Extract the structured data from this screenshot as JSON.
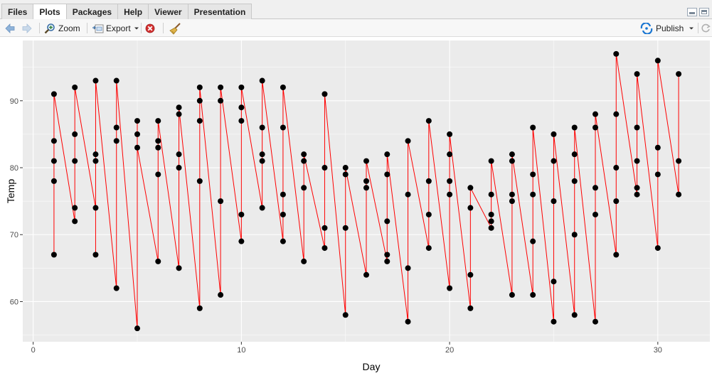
{
  "tabs": [
    {
      "label": "Files"
    },
    {
      "label": "Plots"
    },
    {
      "label": "Packages"
    },
    {
      "label": "Help"
    },
    {
      "label": "Viewer"
    },
    {
      "label": "Presentation"
    }
  ],
  "toolbar": {
    "zoom_label": "Zoom",
    "export_label": "Export",
    "publish_label": "Publish"
  },
  "icons": {
    "back": "arrow-left-icon",
    "forward": "arrow-right-icon",
    "zoom": "magnifier-icon",
    "export": "export-icon",
    "remove": "remove-plot-icon",
    "clear": "broom-icon",
    "publish": "publish-icon",
    "refresh": "refresh-icon"
  },
  "colors": {
    "panel_bg": "#ebebeb",
    "grid": "#ffffff",
    "line": "#ff0000",
    "point": "#000000"
  },
  "chart_data": {
    "type": "line",
    "xlabel": "Day",
    "ylabel": "Temp",
    "xlim": [
      -0.5,
      32.5
    ],
    "ylim": [
      54,
      99
    ],
    "x_ticks": [
      0,
      10,
      20,
      30
    ],
    "y_ticks": [
      60,
      70,
      80,
      90
    ],
    "grid": true,
    "points": [
      [
        1,
        67
      ],
      [
        1,
        78
      ],
      [
        1,
        84
      ],
      [
        1,
        81
      ],
      [
        1,
        91
      ],
      [
        2,
        72
      ],
      [
        2,
        74
      ],
      [
        2,
        85
      ],
      [
        2,
        81
      ],
      [
        2,
        92
      ],
      [
        3,
        74
      ],
      [
        3,
        67
      ],
      [
        3,
        82
      ],
      [
        3,
        81
      ],
      [
        3,
        93
      ],
      [
        4,
        62
      ],
      [
        4,
        86
      ],
      [
        4,
        84
      ],
      [
        4,
        93
      ],
      [
        5,
        56
      ],
      [
        5,
        87
      ],
      [
        5,
        85
      ],
      [
        5,
        83
      ],
      [
        6,
        66
      ],
      [
        6,
        79
      ],
      [
        6,
        84
      ],
      [
        6,
        83
      ],
      [
        6,
        87
      ],
      [
        7,
        65
      ],
      [
        7,
        80
      ],
      [
        7,
        82
      ],
      [
        7,
        88
      ],
      [
        7,
        89
      ],
      [
        8,
        59
      ],
      [
        8,
        78
      ],
      [
        8,
        87
      ],
      [
        8,
        90
      ],
      [
        8,
        92
      ],
      [
        9,
        61
      ],
      [
        9,
        75
      ],
      [
        9,
        90
      ],
      [
        9,
        92
      ],
      [
        10,
        69
      ],
      [
        10,
        73
      ],
      [
        10,
        87
      ],
      [
        10,
        89
      ],
      [
        10,
        92
      ],
      [
        11,
        74
      ],
      [
        11,
        81
      ],
      [
        11,
        82
      ],
      [
        11,
        86
      ],
      [
        11,
        93
      ],
      [
        12,
        69
      ],
      [
        12,
        73
      ],
      [
        12,
        76
      ],
      [
        12,
        86
      ],
      [
        12,
        92
      ],
      [
        13,
        66
      ],
      [
        13,
        77
      ],
      [
        13,
        81
      ],
      [
        13,
        82
      ],
      [
        14,
        68
      ],
      [
        14,
        71
      ],
      [
        14,
        80
      ],
      [
        14,
        91
      ],
      [
        15,
        58
      ],
      [
        15,
        71
      ],
      [
        15,
        79
      ],
      [
        15,
        80
      ],
      [
        16,
        64
      ],
      [
        16,
        77
      ],
      [
        16,
        78
      ],
      [
        16,
        81
      ],
      [
        17,
        66
      ],
      [
        17,
        67
      ],
      [
        17,
        72
      ],
      [
        17,
        79
      ],
      [
        17,
        82
      ],
      [
        18,
        57
      ],
      [
        18,
        65
      ],
      [
        18,
        76
      ],
      [
        18,
        84
      ],
      [
        19,
        68
      ],
      [
        19,
        73
      ],
      [
        19,
        78
      ],
      [
        19,
        87
      ],
      [
        20,
        62
      ],
      [
        20,
        76
      ],
      [
        20,
        78
      ],
      [
        20,
        82
      ],
      [
        20,
        85
      ],
      [
        21,
        59
      ],
      [
        21,
        64
      ],
      [
        21,
        74
      ],
      [
        21,
        77
      ],
      [
        22,
        71
      ],
      [
        22,
        72
      ],
      [
        22,
        73
      ],
      [
        22,
        76
      ],
      [
        22,
        81
      ],
      [
        23,
        61
      ],
      [
        23,
        75
      ],
      [
        23,
        76
      ],
      [
        23,
        81
      ],
      [
        23,
        82
      ],
      [
        24,
        61
      ],
      [
        24,
        69
      ],
      [
        24,
        76
      ],
      [
        24,
        79
      ],
      [
        24,
        86
      ],
      [
        25,
        57
      ],
      [
        25,
        63
      ],
      [
        25,
        75
      ],
      [
        25,
        81
      ],
      [
        25,
        85
      ],
      [
        26,
        58
      ],
      [
        26,
        70
      ],
      [
        26,
        78
      ],
      [
        26,
        82
      ],
      [
        26,
        86
      ],
      [
        27,
        57
      ],
      [
        27,
        73
      ],
      [
        27,
        77
      ],
      [
        27,
        86
      ],
      [
        27,
        88
      ],
      [
        28,
        67
      ],
      [
        28,
        75
      ],
      [
        28,
        80
      ],
      [
        28,
        88
      ],
      [
        28,
        97
      ],
      [
        29,
        76
      ],
      [
        29,
        77
      ],
      [
        29,
        81
      ],
      [
        29,
        86
      ],
      [
        29,
        94
      ],
      [
        30,
        68
      ],
      [
        30,
        79
      ],
      [
        30,
        83
      ],
      [
        30,
        96
      ],
      [
        31,
        76
      ],
      [
        31,
        81
      ],
      [
        31,
        94
      ]
    ]
  }
}
